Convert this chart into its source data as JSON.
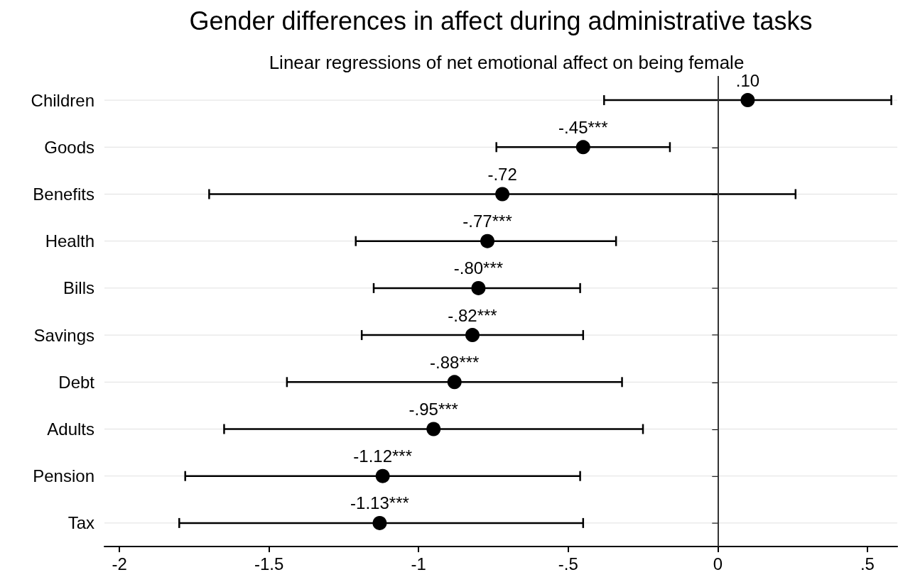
{
  "chart_data": {
    "type": "scatter",
    "orientation": "horizontal",
    "title": "Gender differences in affect during administrative tasks",
    "subtitle": "Linear regressions of net emotional affect on being female",
    "categories": [
      "Children",
      "Goods",
      "Benefits",
      "Health",
      "Bills",
      "Savings",
      "Debt",
      "Adults",
      "Pension",
      "Tax"
    ],
    "values": [
      0.1,
      -0.45,
      -0.72,
      -0.77,
      -0.8,
      -0.82,
      -0.88,
      -0.95,
      -1.12,
      -1.13
    ],
    "value_labels": [
      ".10",
      "-.45***",
      "-.72",
      "-.77***",
      "-.80***",
      "-.82***",
      "-.88***",
      "-.95***",
      "-1.12***",
      "-1.13***"
    ],
    "errors": [
      [
        -0.38,
        0.58
      ],
      [
        -0.74,
        -0.16
      ],
      [
        -1.7,
        0.26
      ],
      [
        -1.21,
        -0.34
      ],
      [
        -1.15,
        -0.46
      ],
      [
        -1.19,
        -0.45
      ],
      [
        -1.44,
        -0.32
      ],
      [
        -1.65,
        -0.25
      ],
      [
        -1.78,
        -0.46
      ],
      [
        -1.8,
        -0.45
      ]
    ],
    "color": "#000000",
    "marker": "circle",
    "grid": "y",
    "xlim": [
      -2.05,
      0.6
    ],
    "xticks": [
      -2,
      {
        "value": -1.5,
        "label": "-1.5"
      },
      -1,
      {
        "value": -0.5,
        "label": "-.5"
      },
      0,
      {
        "value": 0.5,
        "label": ".5"
      }
    ],
    "ref_lines": [
      {
        "axis": "x",
        "value": 0,
        "color": "#333333"
      }
    ]
  }
}
